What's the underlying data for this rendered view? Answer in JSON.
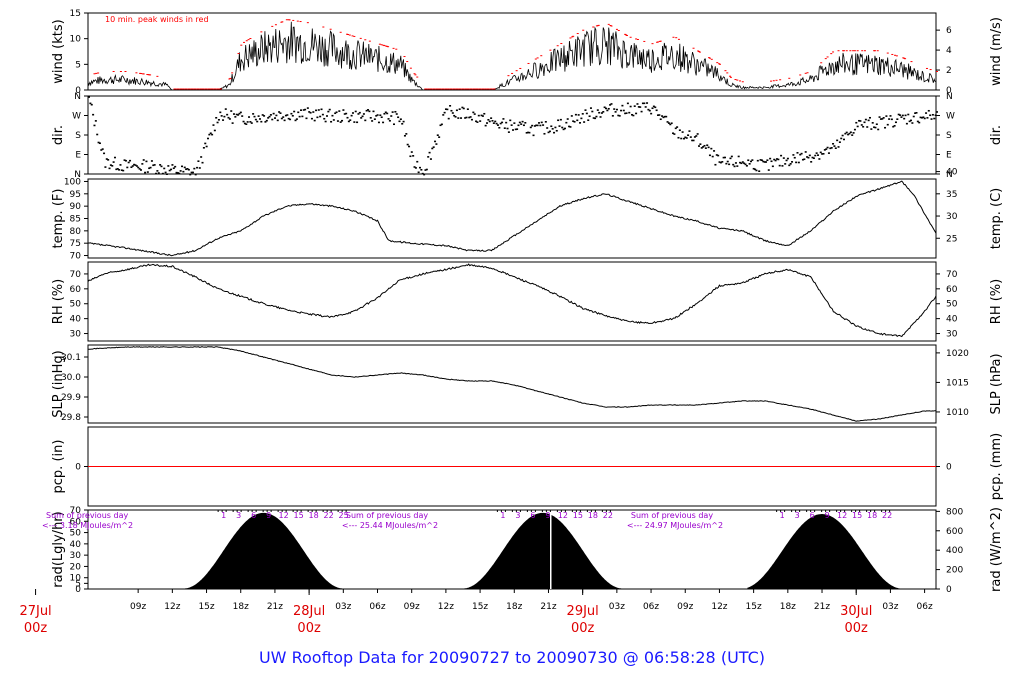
{
  "title": "UW Rooftop Data for 20090727  to  20090730 @ 06:58:28  (UTC)",
  "colors": {
    "data": "#000000",
    "peak": "#ff0000",
    "zero": "#ff0000",
    "date": "#dd0000",
    "annot": "#9900cc",
    "title": "#1a1aff"
  },
  "time_axis": {
    "t_start_hours": 4.6,
    "t_end_hours": 79,
    "hour_ticks": [
      9,
      12,
      15,
      18,
      21,
      24,
      27,
      30,
      33,
      36,
      39,
      42,
      45,
      48,
      51,
      54,
      57,
      60,
      63,
      66,
      69,
      72,
      75,
      78
    ],
    "hour_tick_labels": [
      "09z",
      "12z",
      "15z",
      "18z",
      "21z",
      "",
      "03z",
      "06z",
      "09z",
      "12z",
      "15z",
      "18z",
      "21z",
      "",
      "03z",
      "06z",
      "09z",
      "12z",
      "15z",
      "18z",
      "21z",
      "",
      "03z",
      "06z"
    ],
    "day_labels": [
      {
        "hour": 0,
        "date": "27Jul",
        "hourlabel": "00z"
      },
      {
        "hour": 24,
        "date": "28Jul",
        "hourlabel": "00z"
      },
      {
        "hour": 48,
        "date": "29Jul",
        "hourlabel": "00z"
      },
      {
        "hour": 72,
        "date": "30Jul",
        "hourlabel": "00z"
      }
    ]
  },
  "chart_data": [
    {
      "type": "line",
      "panel": "wind",
      "ylabel": "wind (kts)",
      "ylabel_right": "wind (m/s)",
      "ylim": [
        0,
        15
      ],
      "yticks": [
        0,
        5,
        10,
        15
      ],
      "yticks_right": [
        0,
        2,
        4,
        6
      ],
      "annotation": "10 min. peak winds in red",
      "series": [
        {
          "x": [
            4.6,
            6,
            8,
            10,
            11.5,
            12,
            14,
            16,
            17,
            18,
            20,
            22,
            24,
            26,
            28,
            30,
            32,
            33,
            34,
            36,
            37,
            38,
            40,
            42,
            44,
            46,
            48,
            50,
            52,
            54,
            56,
            58,
            60,
            61,
            62,
            64,
            66,
            68,
            70,
            72,
            74,
            76,
            78,
            79
          ],
          "y": [
            1.5,
            2,
            2,
            1.5,
            1,
            0,
            0,
            0,
            1,
            6,
            8,
            9.5,
            9,
            8,
            7,
            6,
            5,
            2,
            0,
            0,
            0,
            0,
            0,
            2,
            4,
            6,
            8,
            9,
            7,
            6,
            7,
            5,
            3,
            1,
            0.5,
            0.5,
            1,
            2,
            5,
            5,
            5,
            4,
            2.5,
            2
          ]
        }
      ]
    },
    {
      "type": "scatter",
      "panel": "dir",
      "ylabel": "dir.",
      "ylabel_right": "dir.",
      "ylim": [
        0,
        360
      ],
      "ytick_labels": [
        "N",
        "E",
        "S",
        "W",
        "N"
      ],
      "yticks": [
        0,
        90,
        180,
        270,
        360
      ],
      "yticks_right": [
        0,
        90,
        180,
        270,
        360
      ],
      "series": [
        {
          "x": [
            4.6,
            6,
            8,
            10,
            12,
            14,
            16,
            18,
            20,
            22,
            24,
            26,
            28,
            30,
            32,
            33,
            34,
            36,
            38,
            40,
            42,
            44,
            46,
            48,
            50,
            52,
            54,
            56,
            58,
            60,
            62,
            64,
            66,
            68,
            70,
            72,
            74,
            76,
            78,
            79
          ],
          "y": [
            350,
            60,
            40,
            40,
            20,
            10,
            280,
            260,
            270,
            280,
            280,
            270,
            270,
            270,
            260,
            60,
            20,
            290,
            280,
            240,
            220,
            210,
            230,
            270,
            300,
            300,
            310,
            200,
            160,
            50,
            60,
            40,
            70,
            90,
            120,
            230,
            240,
            260,
            270,
            270
          ]
        }
      ]
    },
    {
      "type": "line",
      "panel": "temp",
      "ylabel": "temp. (F)",
      "ylabel_right": "temp. (C)",
      "ylim": [
        69,
        101
      ],
      "yticks": [
        70,
        75,
        80,
        85,
        90,
        95,
        100
      ],
      "yticks_right": [
        25,
        30,
        35,
        40
      ],
      "series": [
        {
          "x": [
            4.6,
            8,
            12,
            14,
            16,
            18,
            20,
            22,
            24,
            26,
            28,
            30,
            31,
            33,
            36,
            38,
            40,
            42,
            44,
            46,
            48,
            50,
            52,
            54,
            56,
            58,
            60,
            62,
            64,
            66,
            68,
            70,
            72,
            74,
            76,
            77,
            79
          ],
          "y": [
            75,
            73,
            70,
            72,
            77,
            80,
            86,
            90,
            91,
            90,
            88,
            84,
            76,
            75,
            74,
            72,
            72,
            78,
            84,
            90,
            93,
            95,
            92,
            89,
            86,
            84,
            81,
            80,
            76,
            74,
            80,
            88,
            94,
            97,
            100,
            95,
            79
          ]
        }
      ]
    },
    {
      "type": "line",
      "panel": "rh",
      "ylabel": "RH (%)",
      "ylabel_right": "RH (%)",
      "ylim": [
        25,
        78
      ],
      "yticks": [
        30,
        40,
        50,
        60,
        70
      ],
      "yticks_right": [
        30,
        40,
        50,
        60,
        70
      ],
      "series": [
        {
          "x": [
            4.6,
            6,
            8,
            10,
            12,
            14,
            16,
            18,
            20,
            22,
            24,
            26,
            28,
            30,
            32,
            34,
            36,
            38,
            40,
            42,
            44,
            46,
            48,
            50,
            52,
            54,
            56,
            58,
            60,
            62,
            64,
            66,
            68,
            70,
            72,
            74,
            76,
            78,
            79
          ],
          "y": [
            65,
            70,
            73,
            76,
            75,
            68,
            60,
            55,
            50,
            46,
            43,
            41,
            45,
            54,
            66,
            70,
            73,
            76,
            74,
            68,
            62,
            55,
            47,
            42,
            38,
            37,
            40,
            50,
            62,
            64,
            70,
            73,
            68,
            45,
            35,
            30,
            28,
            45,
            55
          ]
        }
      ]
    },
    {
      "type": "line",
      "panel": "slp",
      "ylabel": "SLP (inHg)",
      "ylabel_right": "SLP (hPa)",
      "ylim": [
        29.77,
        30.16
      ],
      "yticks": [
        29.8,
        29.9,
        30.0,
        30.1
      ],
      "yticks_right": [
        1010,
        1015,
        1020
      ],
      "series": [
        {
          "x": [
            4.6,
            8,
            12,
            16,
            18,
            20,
            22,
            24,
            26,
            28,
            30,
            32,
            34,
            36,
            38,
            40,
            42,
            44,
            46,
            48,
            50,
            52,
            54,
            56,
            58,
            60,
            62,
            64,
            66,
            68,
            70,
            72,
            74,
            76,
            78,
            79
          ],
          "y": [
            30.14,
            30.15,
            30.15,
            30.15,
            30.13,
            30.1,
            30.07,
            30.04,
            30.01,
            30.0,
            30.01,
            30.02,
            30.01,
            29.99,
            29.98,
            29.98,
            29.96,
            29.93,
            29.9,
            29.87,
            29.85,
            29.85,
            29.86,
            29.86,
            29.86,
            29.87,
            29.88,
            29.88,
            29.86,
            29.84,
            29.81,
            29.78,
            29.79,
            29.81,
            29.83,
            29.83
          ]
        }
      ]
    },
    {
      "type": "line",
      "panel": "pcp",
      "ylabel": "pcp. (in)",
      "ylabel_right": "pcp. (mm)",
      "ylim": [
        -1,
        1
      ],
      "yticks": [
        0
      ],
      "yticks_right": [
        0
      ],
      "series": [
        {
          "x": [
            4.6,
            79
          ],
          "y": [
            0,
            0
          ]
        }
      ]
    },
    {
      "type": "area",
      "panel": "rad",
      "ylabel": "rad(Lgly/hr)",
      "ylabel_right": "rad (W/m^2)",
      "ylim": [
        0,
        70
      ],
      "yticks": [
        0,
        5,
        10,
        20,
        30,
        40,
        50,
        60,
        70
      ],
      "yticks_right": [
        0,
        200,
        400,
        600,
        800
      ],
      "annotations": [
        {
          "hour": 4.6,
          "line1": "Sum of previous day",
          "line2": "<--- 3.18 MJoules/m^2"
        },
        {
          "hour": 26,
          "line1": "Sum of previous day",
          "line2": "<--- 25.44 MJoules/m^2"
        },
        {
          "hour": 51,
          "line1": "Sum of previous day",
          "line2": "<--- 24.97 MJoules/m^2"
        }
      ],
      "hour_labels": [
        {
          "day": 0,
          "labels": [
            "1",
            "3",
            "6",
            "9",
            "12",
            "15",
            "18",
            "22",
            "25"
          ]
        },
        {
          "day": 1,
          "labels": [
            "1",
            "3",
            "6",
            "9",
            "12",
            "15",
            "18",
            "22"
          ]
        },
        {
          "day": 2,
          "labels": [
            "1",
            "3",
            "6",
            "9",
            "12",
            "15",
            "18",
            "22"
          ]
        }
      ],
      "series": [
        {
          "name": "day1",
          "peak_hour": 20,
          "start_hour": 13,
          "end_hour": 27,
          "peak": 67
        },
        {
          "name": "day2",
          "peak_hour": 44.5,
          "start_hour": 37.5,
          "end_hour": 51.5,
          "peak": 67
        },
        {
          "name": "day3",
          "peak_hour": 69,
          "start_hour": 62.5,
          "end_hour": 76.5,
          "peak": 66
        }
      ]
    }
  ]
}
